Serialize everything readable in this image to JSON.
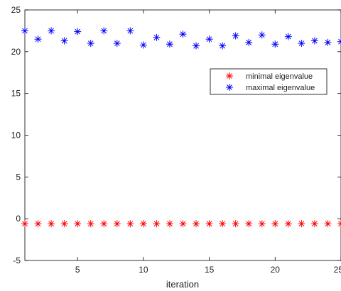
{
  "chart_data": {
    "type": "scatter",
    "title": "",
    "xlabel": "iteration",
    "ylabel": "",
    "xlim": [
      1,
      25
    ],
    "ylim": [
      -5,
      25
    ],
    "x_ticks": [
      5,
      10,
      15,
      20,
      25
    ],
    "y_ticks": [
      -5,
      0,
      5,
      10,
      15,
      20,
      25
    ],
    "grid": false,
    "legend_position": "upper-right",
    "marker": "asterisk",
    "x": [
      1,
      2,
      3,
      4,
      5,
      6,
      7,
      8,
      9,
      10,
      11,
      12,
      13,
      14,
      15,
      16,
      17,
      18,
      19,
      20,
      21,
      22,
      23,
      24,
      25
    ],
    "series": [
      {
        "name": "minimal eigenvalue",
        "color": "#ff0000",
        "values": [
          -0.6,
          -0.6,
          -0.6,
          -0.6,
          -0.6,
          -0.6,
          -0.6,
          -0.6,
          -0.6,
          -0.6,
          -0.6,
          -0.6,
          -0.6,
          -0.6,
          -0.6,
          -0.6,
          -0.6,
          -0.6,
          -0.6,
          -0.6,
          -0.6,
          -0.6,
          -0.6,
          -0.6,
          -0.6
        ]
      },
      {
        "name": "maximal eigenvalue",
        "color": "#0000ff",
        "values": [
          22.5,
          21.5,
          22.5,
          21.3,
          22.4,
          21.0,
          22.5,
          21.0,
          22.5,
          20.8,
          21.7,
          20.9,
          22.1,
          20.7,
          21.5,
          20.7,
          21.9,
          21.1,
          22.0,
          20.9,
          21.8,
          21.0,
          21.3,
          21.1,
          21.2
        ]
      }
    ]
  }
}
